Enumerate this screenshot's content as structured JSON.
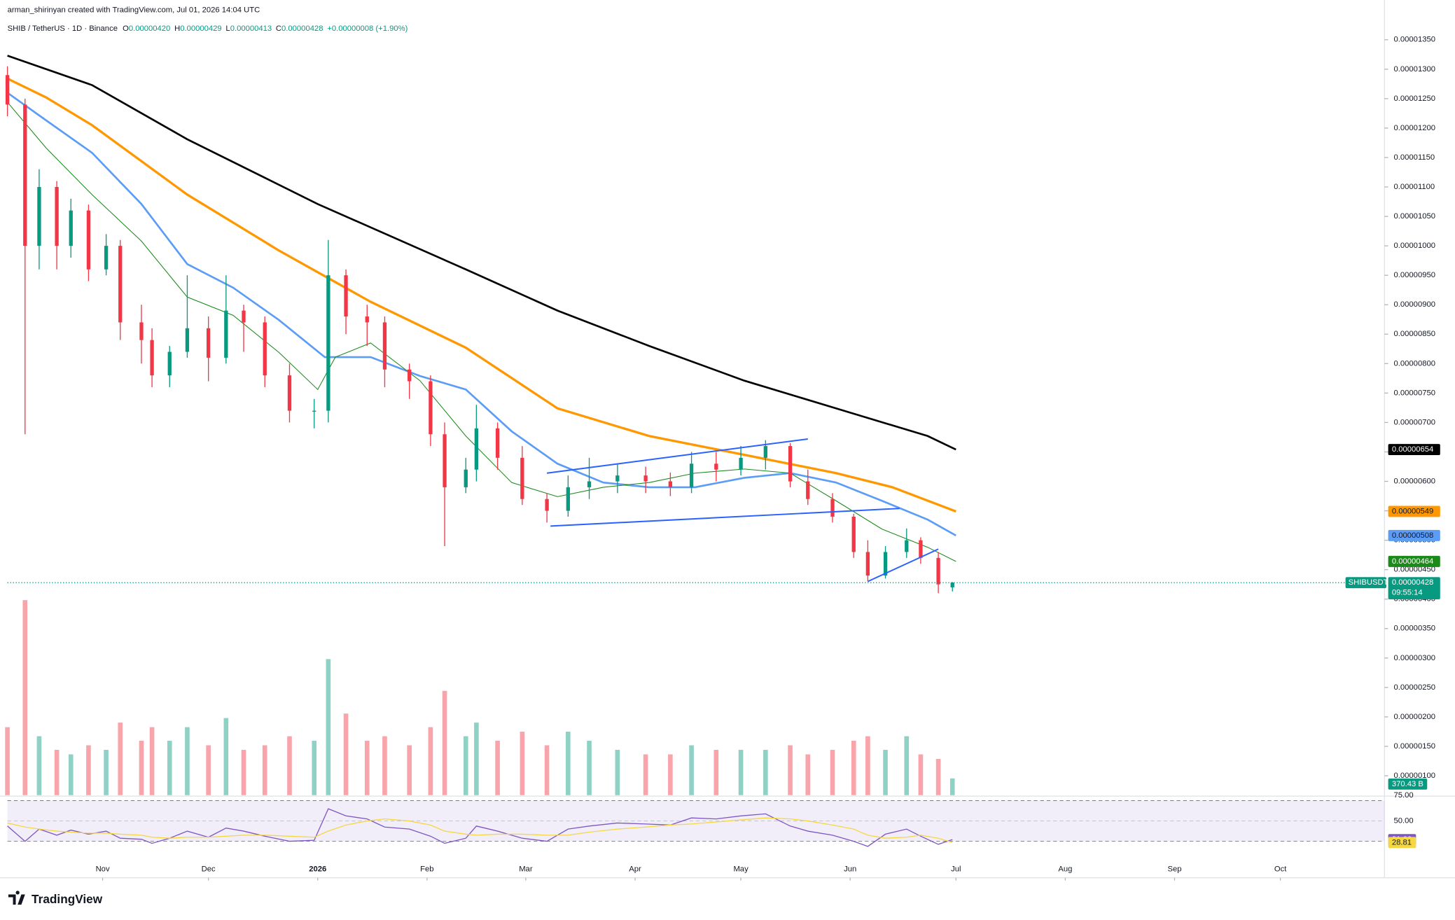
{
  "header": {
    "credit": "arman_shirinyan created with TradingView.com, Jul 01, 2026 14:04 UTC",
    "symbol": "SHIB / TetherUS · 1D · Binance",
    "o_key": "O",
    "o": "0.00000420",
    "h_key": "H",
    "h": "0.00000429",
    "l_key": "L",
    "l": "0.00000413",
    "c_key": "C",
    "c": "0.00000428",
    "change": "+0.00000008 (+1.90%)"
  },
  "footer": {
    "brand": "TradingView"
  },
  "chart_data": {
    "type": "candlestick",
    "up_color": "#089981",
    "down_color": "#f23645",
    "xlim": [
      4,
      394
    ],
    "xticks": [
      {
        "value": 31,
        "label": "Nov"
      },
      {
        "value": 61,
        "label": "Dec"
      },
      {
        "value": 92,
        "label": "2026"
      },
      {
        "value": 123,
        "label": "Feb"
      },
      {
        "value": 151,
        "label": "Mar"
      },
      {
        "value": 182,
        "label": "Apr"
      },
      {
        "value": 212,
        "label": "May"
      },
      {
        "value": 243,
        "label": "Jun"
      },
      {
        "value": 273,
        "label": "Jul"
      },
      {
        "value": 304,
        "label": "Aug"
      },
      {
        "value": 335,
        "label": "Sep"
      },
      {
        "value": 365,
        "label": "Oct"
      }
    ],
    "ylim": [
      6.7e-07,
      1.386e-05
    ],
    "yticks": [
      {
        "value": 1.35e-05,
        "label": "0.00001350"
      },
      {
        "value": 1.3e-05,
        "label": "0.00001300"
      },
      {
        "value": 1.25e-05,
        "label": "0.00001250"
      },
      {
        "value": 1.2e-05,
        "label": "0.00001200"
      },
      {
        "value": 1.15e-05,
        "label": "0.00001150"
      },
      {
        "value": 1.1e-05,
        "label": "0.00001100"
      },
      {
        "value": 1.05e-05,
        "label": "0.00001050"
      },
      {
        "value": 1e-05,
        "label": "0.00001000"
      },
      {
        "value": 9.5e-06,
        "label": "0.00000950"
      },
      {
        "value": 9e-06,
        "label": "0.00000900"
      },
      {
        "value": 8.5e-06,
        "label": "0.00000850"
      },
      {
        "value": 8e-06,
        "label": "0.00000800"
      },
      {
        "value": 7.5e-06,
        "label": "0.00000750"
      },
      {
        "value": 7e-06,
        "label": "0.00000700"
      },
      {
        "value": 6.5e-06,
        "label": "0.00000650"
      },
      {
        "value": 6e-06,
        "label": "0.00000600"
      },
      {
        "value": 5.5e-06,
        "label": "0.00000550"
      },
      {
        "value": 5e-06,
        "label": "0.00000500"
      },
      {
        "value": 4.5e-06,
        "label": "0.00000450"
      },
      {
        "value": 4e-06,
        "label": "0.00000400"
      },
      {
        "value": 3.5e-06,
        "label": "0.00000350"
      },
      {
        "value": 3e-06,
        "label": "0.00000300"
      },
      {
        "value": 2.5e-06,
        "label": "0.00000250"
      },
      {
        "value": 2e-06,
        "label": "0.00000200"
      },
      {
        "value": 1.5e-06,
        "label": "0.00000150"
      },
      {
        "value": 1e-06,
        "label": "0.00000100"
      }
    ],
    "x": [
      4,
      9,
      13,
      18,
      22,
      27,
      32,
      36,
      42,
      45,
      50,
      55,
      61,
      66,
      71,
      77,
      84,
      91,
      95,
      100,
      106,
      111,
      118,
      124,
      128,
      134,
      137,
      143,
      150,
      157,
      163,
      169,
      177,
      185,
      192,
      198,
      205,
      212,
      219,
      226,
      231,
      238,
      244,
      248,
      253,
      259,
      263,
      268,
      272
    ],
    "open": [
      1.29e-05,
      1.24e-05,
      1e-05,
      1.1e-05,
      1e-05,
      1.06e-05,
      9.6e-06,
      1e-05,
      8.7e-06,
      8.4e-06,
      7.8e-06,
      8.2e-06,
      8.6e-06,
      8.1e-06,
      8.9e-06,
      8.7e-06,
      7.8e-06,
      7.2e-06,
      7.2e-06,
      9.5e-06,
      8.8e-06,
      8.7e-06,
      7.9e-06,
      7.7e-06,
      6.8e-06,
      5.9e-06,
      6.2e-06,
      6.9e-06,
      6.4e-06,
      5.7e-06,
      5.5e-06,
      5.9e-06,
      6e-06,
      6.1e-06,
      6e-06,
      5.9e-06,
      6.3e-06,
      6.2e-06,
      6.4e-06,
      6.6e-06,
      6e-06,
      5.7e-06,
      5.4e-06,
      4.8e-06,
      4.4e-06,
      4.8e-06,
      5e-06,
      4.7e-06,
      4.2e-06
    ],
    "high": [
      1.305e-05,
      1.25e-05,
      1.13e-05,
      1.11e-05,
      1.08e-05,
      1.07e-05,
      1.02e-05,
      1.01e-05,
      9e-06,
      8.6e-06,
      8.3e-06,
      9.5e-06,
      8.8e-06,
      9.5e-06,
      9e-06,
      8.8e-06,
      8e-06,
      7.4e-06,
      1.01e-05,
      9.6e-06,
      9e-06,
      8.8e-06,
      8e-06,
      7.8e-06,
      7e-06,
      6.4e-06,
      7.3e-06,
      7e-06,
      6.6e-06,
      5.8e-06,
      6.1e-06,
      6.4e-06,
      6.3e-06,
      6.25e-06,
      6.15e-06,
      6.5e-06,
      6.5e-06,
      6.6e-06,
      6.7e-06,
      6.65e-06,
      6.2e-06,
      5.8e-06,
      5.45e-06,
      5e-06,
      4.9e-06,
      5.2e-06,
      5.05e-06,
      4.8e-06,
      4.29e-06
    ],
    "low": [
      1.22e-05,
      6.8e-06,
      9.6e-06,
      9.6e-06,
      9.8e-06,
      9.4e-06,
      9.5e-06,
      8.4e-06,
      8e-06,
      7.6e-06,
      7.6e-06,
      8.1e-06,
      7.7e-06,
      8e-06,
      8.2e-06,
      7.6e-06,
      7e-06,
      6.9e-06,
      7e-06,
      8.5e-06,
      8.3e-06,
      7.6e-06,
      7.4e-06,
      6.6e-06,
      4.9e-06,
      5.8e-06,
      6e-06,
      6.2e-06,
      5.6e-06,
      5.3e-06,
      5.4e-06,
      5.7e-06,
      5.8e-06,
      5.8e-06,
      5.75e-06,
      5.8e-06,
      6e-06,
      6.1e-06,
      6.2e-06,
      5.9e-06,
      5.6e-06,
      5.3e-06,
      4.7e-06,
      4.3e-06,
      4.35e-06,
      4.7e-06,
      4.6e-06,
      4.1e-06,
      4.13e-06
    ],
    "close": [
      1.24e-05,
      1e-05,
      1.1e-05,
      1e-05,
      1.06e-05,
      9.6e-06,
      1e-05,
      8.7e-06,
      8.4e-06,
      7.8e-06,
      8.2e-06,
      8.6e-06,
      8.1e-06,
      8.9e-06,
      8.7e-06,
      7.8e-06,
      7.2e-06,
      7.2e-06,
      9.5e-06,
      8.8e-06,
      8.7e-06,
      7.9e-06,
      7.7e-06,
      6.8e-06,
      5.9e-06,
      6.2e-06,
      6.9e-06,
      6.4e-06,
      5.7e-06,
      5.5e-06,
      5.9e-06,
      6e-06,
      6.1e-06,
      6e-06,
      5.9e-06,
      6.3e-06,
      6.2e-06,
      6.4e-06,
      6.6e-06,
      6e-06,
      5.7e-06,
      5.4e-06,
      4.8e-06,
      4.4e-06,
      4.8e-06,
      5e-06,
      4.7e-06,
      4.25e-06,
      4.28e-06
    ],
    "last_price": {
      "symbol": "SHIBUSDT",
      "label": "0.00000428",
      "countdown": "09:55:14",
      "color": "#089981"
    },
    "series": [
      {
        "color": "#000000",
        "x": [
          4,
          28,
          55,
          92,
          134,
          160,
          186,
          213,
          239,
          265,
          273
        ],
        "values": [
          1.323e-05,
          1.273e-05,
          1.181e-05,
          1.071e-05,
          9.6e-06,
          8.9e-06,
          8.3e-06,
          7.71e-06,
          7.24e-06,
          6.77e-06,
          6.54e-06
        ],
        "tag_label": "0.00000654"
      },
      {
        "color": "#ff9800",
        "x": [
          4,
          15,
          28,
          55,
          81,
          107,
          134,
          160,
          186,
          213,
          239,
          255,
          273
        ],
        "values": [
          1.284e-05,
          1.252e-05,
          1.205e-05,
          1.087e-05,
          9.92e-06,
          9.05e-06,
          8.27e-06,
          7.24e-06,
          6.77e-06,
          6.45e-06,
          6.14e-06,
          5.9e-06,
          5.49e-06
        ],
        "tag_label": "0.00000549"
      },
      {
        "color": "#5b9cf6",
        "x": [
          4,
          15,
          28,
          42,
          55,
          68,
          81,
          94,
          107,
          121,
          134,
          147,
          160,
          173,
          186,
          199,
          213,
          226,
          239,
          252,
          265,
          273
        ],
        "values": [
          1.26e-05,
          1.213e-05,
          1.158e-05,
          1.071e-05,
          9.69e-06,
          9.29e-06,
          8.74e-06,
          8.11e-06,
          8.11e-06,
          7.79e-06,
          7.56e-06,
          6.85e-06,
          6.3e-06,
          5.98e-06,
          5.9e-06,
          5.9e-06,
          6.06e-06,
          6.14e-06,
          5.98e-06,
          5.67e-06,
          5.35e-06,
          5.08e-06
        ],
        "tag_label": "0.00000508"
      },
      {
        "color": "#1b8a1b",
        "x": [
          4,
          15,
          28,
          42,
          55,
          68,
          81,
          92,
          97,
          107,
          121,
          134,
          147,
          160,
          173,
          186,
          199,
          213,
          226,
          239,
          252,
          265,
          273
        ],
        "values": [
          1.244e-05,
          1.166e-05,
          1.087e-05,
          1.008e-05,
          9.13e-06,
          8.82e-06,
          8.19e-06,
          7.56e-06,
          8.11e-06,
          8.35e-06,
          7.71e-06,
          6.77e-06,
          5.98e-06,
          5.74e-06,
          5.9e-06,
          5.98e-06,
          6.14e-06,
          6.21e-06,
          6.14e-06,
          5.67e-06,
          5.19e-06,
          4.88e-06,
          4.64e-06
        ],
        "tag_label": "0.00000464"
      }
    ],
    "trendline_color": "#2962ff",
    "trendlines": [
      {
        "x": [
          157,
          231
        ],
        "y": [
          6.14e-06,
          6.72e-06
        ]
      },
      {
        "x": [
          158,
          257
        ],
        "y": [
          5.24e-06,
          5.54e-06
        ]
      },
      {
        "x": [
          248,
          268
        ],
        "y": [
          4.3e-06,
          4.85e-06
        ]
      }
    ],
    "volume": {
      "ylim": [
        0,
        4500
      ],
      "last_label": "370.43 B",
      "values": [
        1500,
        4300,
        1300,
        1000,
        900,
        1100,
        1000,
        1600,
        1200,
        1500,
        1200,
        1500,
        1100,
        1700,
        1000,
        1100,
        1300,
        1200,
        3000,
        1800,
        1200,
        1300,
        1100,
        1500,
        2300,
        1300,
        1600,
        1200,
        1400,
        1100,
        1400,
        1200,
        1000,
        900,
        900,
        1100,
        1000,
        1000,
        1000,
        1100,
        900,
        1000,
        1200,
        1300,
        1000,
        1300,
        900,
        800,
        370.43
      ]
    },
    "rsi": {
      "ylim": [
        -5,
        79
      ],
      "bands": [
        30,
        70
      ],
      "yticks": [
        {
          "value": 75,
          "label": "75.00"
        },
        {
          "value": 50,
          "label": "50.00"
        }
      ],
      "series": [
        {
          "color": "#7e57c2",
          "values": [
            45,
            30,
            42,
            36,
            41,
            37,
            40,
            33,
            32,
            28,
            33,
            40,
            34,
            43,
            40,
            35,
            30,
            31,
            62,
            55,
            52,
            44,
            42,
            35,
            28,
            33,
            45,
            40,
            33,
            30,
            42,
            45,
            48,
            47,
            46,
            53,
            52,
            55,
            57,
            45,
            40,
            36,
            30,
            25,
            37,
            42,
            35,
            27,
            31.66
          ]
        },
        {
          "color": "#f5d742",
          "values": [
            48,
            44,
            42,
            40,
            39,
            38,
            38,
            37,
            36,
            34,
            33,
            34,
            34,
            35,
            36,
            36,
            35,
            34,
            40,
            46,
            50,
            52,
            50,
            46,
            40,
            37,
            36,
            37,
            37,
            36,
            36,
            39,
            42,
            44,
            46,
            47,
            49,
            51,
            53,
            52,
            50,
            46,
            42,
            36,
            33,
            34,
            36,
            33,
            28.81
          ]
        }
      ]
    }
  }
}
